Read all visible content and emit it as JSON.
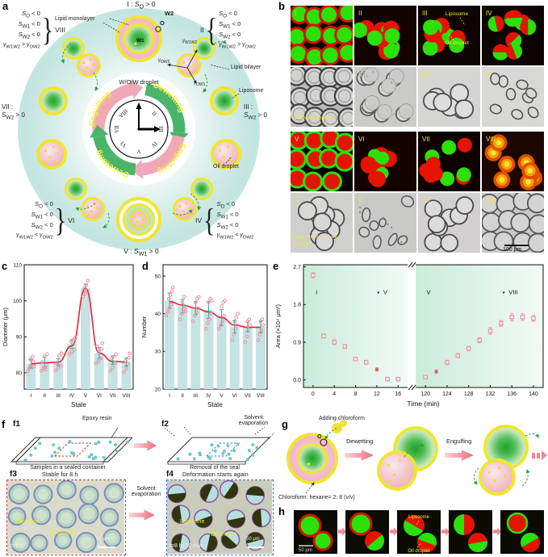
{
  "a": {
    "panel_label": "a",
    "top_state_html": "I : <i>S</i><sub>O</sub> &gt; 0",
    "bottom_state_html": "V : <i>S</i><sub>W1</sub> &gt; 0",
    "left_state_html": "VII :<br><i>S</i><sub>W2</sub> &gt; 0",
    "right_state_html": "III :<br><i>S</i><sub>W2</sub> &gt; 0",
    "cond_blocks": {
      "viii": {
        "state": "VIII",
        "brace": "}",
        "lines_html": [
          "<i>S</i><sub>O</sub> &lt; 0",
          "<i>S</i><sub>W1</sub> &lt; 0",
          "<i>S</i><sub>W2</sub> &lt; 0",
          "<i>γ</i><sub>W1W2</sub> &gt; <i>γ</i><sub>OW2</sub>"
        ]
      },
      "ii": {
        "state": "II",
        "brace": "{",
        "lines_html": [
          "<i>S</i><sub>O</sub> &lt; 0",
          "<i>S</i><sub>W1</sub> &lt; 0",
          "<i>S</i><sub>W2</sub> &lt; 0",
          "<i>γ</i><sub>W1W2</sub> &gt; <i>γ</i><sub>OW2</sub>"
        ]
      },
      "vi": {
        "state": "VI",
        "brace": "}",
        "lines_html": [
          "<i>S</i><sub>O</sub> &lt; 0",
          "<i>S</i><sub>W1</sub> &lt; 0",
          "<i>S</i><sub>W2</sub> &lt; 0",
          "<i>γ</i><sub>W1W2</sub> &lt; <i>γ</i><sub>OW2</sub>"
        ]
      },
      "iv": {
        "state": "IV",
        "brace": "{",
        "lines_html": [
          "<i>S</i><sub>O</sub> &lt; 0",
          "<i>S</i><sub>W1</sub> &lt; 0",
          "<i>S</i><sub>W2</sub> &lt; 0",
          "<i>γ</i><sub>W1W2</sub> &lt; <i>γ</i><sub>OW2</sub>"
        ]
      }
    },
    "clock_numerals": [
      "I",
      "II",
      "III",
      "IV",
      "V",
      "VI",
      "VII",
      "VIII"
    ],
    "cycle_arrows": [
      {
        "label": "Engulfing",
        "color": "#f0a8b6",
        "text_color": "#f2ee3e"
      },
      {
        "label": "Dewetting",
        "color": "#49b46a",
        "text_color": "#f6f33c"
      },
      {
        "label": "Engulfing",
        "color": "#f0a8b6",
        "text_color": "#f2ee3e"
      },
      {
        "label": "Dewetting",
        "color": "#49b46a",
        "text_color": "#f6f33c"
      }
    ],
    "annotations": {
      "lipid_monolayer": "Lipid monolayer",
      "w2": "W2",
      "o": "O",
      "w1": "W1",
      "wow": "W/O/W droplet",
      "bilayer": "Lipid bilayer",
      "liposome": "Liposome",
      "oil": "Oil droplet",
      "g1_html": "<i>γ</i><sub>W1W2</sub>",
      "g2_html": "<i>γ</i><sub>OW2</sub>",
      "g3_html": "<i>γ</i><sub>OW1</sub>"
    }
  },
  "b": {
    "panel_label": "b",
    "scale_bar": "100 μm",
    "tiles": [
      {
        "label": "I",
        "kind": "f-ring"
      },
      {
        "label": "II",
        "kind": "f-pair"
      },
      {
        "label": "III",
        "kind": "f-pair-ann",
        "ann1": "Liposome",
        "ann2": "Oil droplet"
      },
      {
        "label": "IV",
        "kind": "f-janus"
      },
      {
        "label": "I",
        "kind": "b-packed",
        "caption": [
          "W/O/W droplet"
        ]
      },
      {
        "label": "II",
        "kind": "b-cres"
      },
      {
        "label": "III",
        "kind": "b-rings"
      },
      {
        "label": "IV",
        "kind": "b-oval"
      },
      {
        "label": "V",
        "kind": "f-ring-v"
      },
      {
        "label": "VI",
        "kind": "f-pair2"
      },
      {
        "label": "VII",
        "kind": "f-sep"
      },
      {
        "label": "VIII",
        "kind": "f-orange"
      },
      {
        "label": "V",
        "kind": "b-rings-cap",
        "caption": [
          "Liposome with oil",
          "droplet"
        ]
      },
      {
        "label": "VI",
        "kind": "b-blob"
      },
      {
        "label": "VII",
        "kind": "b-rings2"
      },
      {
        "label": "VIII",
        "kind": "b-packed2"
      }
    ]
  },
  "c": {
    "panel_label": "c"
  },
  "d": {
    "panel_label": "d"
  },
  "e": {
    "panel_label": "e"
  },
  "chart_data": [
    {
      "id": "c",
      "type": "bar",
      "title": "",
      "xlabel": "State",
      "ylabel": "Diameter (μm)",
      "categories": [
        "I",
        "II",
        "III",
        "IV",
        "V",
        "VI",
        "VII",
        "VIII"
      ],
      "values": [
        82.5,
        83,
        83,
        88,
        103.5,
        85.5,
        83.5,
        83
      ],
      "line": [
        82.5,
        82.8,
        83,
        87.5,
        103.5,
        85.5,
        83.2,
        83
      ],
      "err": [
        1.2,
        1.4,
        0.9,
        1.2,
        1.1,
        1.5,
        1.2,
        1.1
      ],
      "points": [
        [
          [
            -4,
            80.5
          ],
          [
            -2,
            81.2
          ],
          [
            0,
            82
          ],
          [
            3,
            83.2
          ],
          [
            -1,
            83.8
          ],
          [
            2,
            84.5
          ],
          [
            4,
            81.8
          ]
        ],
        [
          [
            -4,
            80.6
          ],
          [
            -1,
            81.4
          ],
          [
            2,
            82.2
          ],
          [
            -3,
            83
          ],
          [
            0,
            84.6
          ],
          [
            3,
            85.2
          ],
          [
            1,
            80.9
          ]
        ],
        [
          [
            -3,
            80.7
          ],
          [
            0,
            81.3
          ],
          [
            3,
            82
          ],
          [
            -2,
            82.8
          ],
          [
            1,
            84.8
          ],
          [
            4,
            85.4
          ]
        ],
        [
          [
            -3,
            85.2
          ],
          [
            0,
            85.8
          ],
          [
            3,
            86.4
          ],
          [
            -1,
            88.6
          ],
          [
            2,
            89.2
          ],
          [
            4,
            89.8
          ]
        ],
        [
          [
            -3,
            101.2
          ],
          [
            0,
            102
          ],
          [
            2,
            102.8
          ],
          [
            -1,
            103.6
          ],
          [
            1,
            104.4
          ],
          [
            3,
            105.6
          ]
        ],
        [
          [
            -4,
            82.6
          ],
          [
            -1,
            83.2
          ],
          [
            2,
            84
          ],
          [
            0,
            85.8
          ],
          [
            3,
            86.6
          ],
          [
            -2,
            87.4
          ],
          [
            4,
            88.2
          ]
        ],
        [
          [
            -3,
            80.6
          ],
          [
            0,
            81.4
          ],
          [
            3,
            82.8
          ],
          [
            -1,
            84
          ],
          [
            2,
            84.6
          ],
          [
            4,
            85.2
          ]
        ],
        [
          [
            -3,
            80.2
          ],
          [
            0,
            81.2
          ],
          [
            2,
            82.6
          ],
          [
            -1,
            83.4
          ],
          [
            3,
            84.2
          ],
          [
            4,
            85.4
          ]
        ]
      ],
      "ylim": [
        75.5,
        110
      ],
      "yticks": [
        80,
        90,
        100,
        110
      ],
      "grid": false
    },
    {
      "id": "d",
      "type": "bar",
      "title": "",
      "xlabel": "State",
      "ylabel": "Number",
      "categories": [
        "I",
        "II",
        "III",
        "IV",
        "V",
        "VI",
        "VII",
        "VIII"
      ],
      "values": [
        43.5,
        42,
        41.5,
        41,
        39,
        36.5,
        36.5,
        36.5
      ],
      "line": [
        43.2,
        42.3,
        41.5,
        40.5,
        39,
        37,
        36.4,
        36.4
      ],
      "err": [
        2,
        1.8,
        1.7,
        2.2,
        2.1,
        1.6,
        1.3,
        1.5
      ],
      "points": [
        [
          [
            -4,
            39.5
          ],
          [
            -2,
            40.5
          ],
          [
            0,
            41.5
          ],
          [
            2,
            42.5
          ],
          [
            -1,
            44
          ],
          [
            1,
            45
          ],
          [
            3,
            46
          ],
          [
            4,
            47
          ]
        ],
        [
          [
            -3,
            38.5
          ],
          [
            -1,
            40
          ],
          [
            1,
            41
          ],
          [
            3,
            42
          ],
          [
            0,
            43
          ],
          [
            2,
            44.5
          ],
          [
            4,
            40.8
          ]
        ],
        [
          [
            -3,
            38
          ],
          [
            -1,
            39.5
          ],
          [
            1,
            40.5
          ],
          [
            3,
            41.5
          ],
          [
            0,
            43
          ],
          [
            2,
            44
          ],
          [
            4,
            44.5
          ]
        ],
        [
          [
            -3,
            36
          ],
          [
            -1,
            37.5
          ],
          [
            1,
            38.5
          ],
          [
            3,
            40
          ],
          [
            0,
            43
          ],
          [
            2,
            44
          ],
          [
            4,
            43.5
          ]
        ],
        [
          [
            -3,
            36
          ],
          [
            -1,
            37
          ],
          [
            1,
            38
          ],
          [
            3,
            39.5
          ],
          [
            0,
            42
          ],
          [
            2,
            43
          ],
          [
            4,
            43.5
          ]
        ],
        [
          [
            -3,
            33
          ],
          [
            -1,
            34.5
          ],
          [
            1,
            36
          ],
          [
            3,
            37
          ],
          [
            0,
            38
          ],
          [
            2,
            39
          ],
          [
            4,
            40
          ]
        ],
        [
          [
            -3,
            32.5
          ],
          [
            -1,
            34
          ],
          [
            1,
            36
          ],
          [
            3,
            37
          ],
          [
            0,
            38
          ],
          [
            2,
            38.5
          ]
        ],
        [
          [
            -3,
            33
          ],
          [
            -1,
            34.5
          ],
          [
            1,
            35.5
          ],
          [
            3,
            37
          ],
          [
            0,
            38
          ],
          [
            2,
            38.5
          ]
        ]
      ],
      "ylim": [
        20,
        53
      ],
      "yticks": [
        20,
        30,
        40,
        50
      ],
      "grid": false
    },
    {
      "id": "e",
      "type": "scatter",
      "title": "",
      "xlabel": "Time (min)",
      "ylabel": "Area (×10⁴ μm²)",
      "ylim": [
        -0.18,
        2.75
      ],
      "yticks": [
        "0.0",
        "0.9",
        "1.8",
        "2.7"
      ],
      "legend": "none",
      "segments": [
        {
          "xlim": [
            -1.8,
            17.8
          ],
          "xticks": [
            0,
            4,
            8,
            12,
            16
          ],
          "label_start": "I",
          "label_end": "V",
          "start_x": 0.5,
          "end_x": 13.2,
          "ann_y": 2.05,
          "points": [
            [
              0,
              2.5,
              0.06,
              0
            ],
            [
              2,
              1.05,
              0.05,
              0
            ],
            [
              4,
              0.9,
              0.06,
              0
            ],
            [
              6,
              0.8,
              0.05,
              0
            ],
            [
              8,
              0.5,
              0.04,
              0
            ],
            [
              10,
              0.42,
              0.05,
              0
            ],
            [
              12,
              0.25,
              0.04,
              1
            ],
            [
              14,
              0.02,
              0.03,
              0
            ],
            [
              16,
              0.02,
              0.03,
              0
            ]
          ]
        },
        {
          "xlim": [
            118.2,
            141.8
          ],
          "xticks": [
            120,
            124,
            128,
            132,
            136,
            140
          ],
          "label_start": "V",
          "label_end": "VIII",
          "start_x": 120.2,
          "end_x": 135.4,
          "ann_y": 2.05,
          "points": [
            [
              120,
              0.07,
              0.04,
              0
            ],
            [
              122,
              0.2,
              0.04,
              1
            ],
            [
              124,
              0.42,
              0.05,
              0
            ],
            [
              126,
              0.58,
              0.05,
              0
            ],
            [
              128,
              0.75,
              0.05,
              0
            ],
            [
              130,
              0.95,
              0.06,
              0
            ],
            [
              132,
              1.17,
              0.08,
              0
            ],
            [
              134,
              1.35,
              0.07,
              0
            ],
            [
              136,
              1.5,
              0.09,
              0
            ],
            [
              138,
              1.5,
              0.08,
              0
            ],
            [
              140,
              1.47,
              0.07,
              0
            ]
          ]
        }
      ]
    }
  ],
  "f": {
    "panel_label": "f",
    "f1_label": "f1",
    "f1_ann": "Epoxy resin",
    "f1_caption": "Samples in a sealed container",
    "f2_label": "f2",
    "f2_ann": "Solvent evaporation",
    "f2_caption": "Removal of the seal",
    "mid_label": "Solvent evaporation",
    "f3_label": "f3",
    "f3_title": "Stable for 8 h",
    "f3_ann1": "Liposome",
    "f3_ann2": "Oil droplet",
    "f3_time": "t=8 h",
    "f3_scale": "50 μm",
    "f4_label": "f4",
    "f4_title": "Deformation starts again",
    "f4_ann1": "Liposome",
    "f4_ann2": "Oil droplet",
    "f4_time": "t=8 h+10 min",
    "f4_scale": "50 μm"
  },
  "g": {
    "panel_label": "g",
    "adding": "Adding chloroform",
    "step1": "Dewetting",
    "step2": "Engulfing",
    "mix": "Chloroform: hexane= 2: 8 (v/v)",
    "o_label": "O"
  },
  "h": {
    "panel_label": "h",
    "scale": "50 μm",
    "ann1": "Liposome",
    "ann2": "Oil droplet"
  }
}
